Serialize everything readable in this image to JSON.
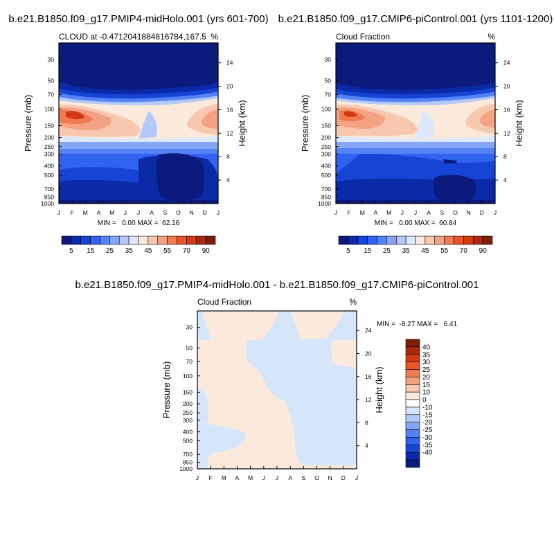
{
  "chart_data": [
    {
      "type": "contour",
      "title": "b.e21.B1850.f09_g17.PMIP4-midHolo.001 (yrs 601-700)",
      "left_label": "CLOUD at -0.4712041884816784,167.5",
      "right_label": "%",
      "ylabel": "Pressure (mb)",
      "y2label": "Height (km)",
      "x_ticks": [
        "J",
        "F",
        "M",
        "A",
        "M",
        "J",
        "J",
        "A",
        "S",
        "O",
        "N",
        "D",
        "J"
      ],
      "y_ticks": [
        30,
        50,
        70,
        100,
        150,
        200,
        250,
        300,
        400,
        500,
        700,
        850,
        1000
      ],
      "y2_ticks": [
        24,
        20,
        16,
        12,
        8,
        4
      ],
      "stats": "MIN =   0.00 MAX =  62.16",
      "colorbar_ticks": [
        "5",
        "15",
        "25",
        "35",
        "45",
        "55",
        "70",
        "90"
      ],
      "colorbar_colors": [
        "#0b1a7d",
        "#0b2aa8",
        "#1644d4",
        "#2f63f0",
        "#5583f7",
        "#85a6f7",
        "#b3c9f7",
        "#dce8fb",
        "#fbeadc",
        "#f8c8ae",
        "#f3a383",
        "#f07a52",
        "#ec5428",
        "#d23a14",
        "#a82a0e",
        "#7f1e08"
      ]
    },
    {
      "type": "contour",
      "title": "b.e21.B1850.f09_g17.CMIP6-piControl.001 (yrs 1101-1200)",
      "left_label": "Cloud Fraction",
      "right_label": "%",
      "ylabel": "Pressure (mb)",
      "y2label": "Height (km)",
      "x_ticks": [
        "J",
        "F",
        "M",
        "A",
        "M",
        "J",
        "J",
        "A",
        "S",
        "O",
        "N",
        "D",
        "J"
      ],
      "y_ticks": [
        30,
        50,
        70,
        100,
        150,
        200,
        250,
        300,
        400,
        500,
        700,
        850,
        1000
      ],
      "y2_ticks": [
        24,
        20,
        16,
        12,
        8,
        4
      ],
      "stats": "MIN =   0.00 MAX =  60.84",
      "colorbar_ticks": [
        "5",
        "15",
        "25",
        "35",
        "45",
        "55",
        "70",
        "90"
      ],
      "colorbar_colors": [
        "#0b1a7d",
        "#0b2aa8",
        "#1644d4",
        "#2f63f0",
        "#5583f7",
        "#85a6f7",
        "#b3c9f7",
        "#dce8fb",
        "#fbeadc",
        "#f8c8ae",
        "#f3a383",
        "#f07a52",
        "#ec5428",
        "#d23a14",
        "#a82a0e",
        "#7f1e08"
      ]
    },
    {
      "type": "contour",
      "title": "b.e21.B1850.f09_g17.PMIP4-midHolo.001 - b.e21.B1850.f09_g17.CMIP6-piControl.001",
      "left_label": "Cloud Fraction",
      "right_label": "%",
      "ylabel": "Pressure (mb)",
      "y2label": "Height (km)",
      "x_ticks": [
        "J",
        "F",
        "M",
        "A",
        "M",
        "J",
        "J",
        "A",
        "S",
        "O",
        "N",
        "D",
        "J"
      ],
      "y_ticks": [
        30,
        50,
        70,
        100,
        150,
        200,
        250,
        300,
        400,
        500,
        700,
        850,
        1000
      ],
      "y2_ticks": [
        24,
        20,
        16,
        12,
        8,
        4
      ],
      "stats": "MIN =  -8.27 MAX =   6.41",
      "colorbar_ticks": [
        "40",
        "35",
        "30",
        "25",
        "20",
        "15",
        "10",
        "0",
        "-10",
        "-15",
        "-20",
        "-25",
        "-30",
        "-35",
        "-40"
      ],
      "colorbar_colors": [
        "#7f1e08",
        "#a82a0e",
        "#d23a14",
        "#ec5428",
        "#f07a52",
        "#f3a383",
        "#f8c8ae",
        "#fbeadc",
        "#fdfdfd",
        "#d6e6fa",
        "#b3c9f7",
        "#85a6f7",
        "#5583f7",
        "#2f63f0",
        "#1644d4",
        "#0b2aa8",
        "#0b1a7d"
      ]
    }
  ]
}
